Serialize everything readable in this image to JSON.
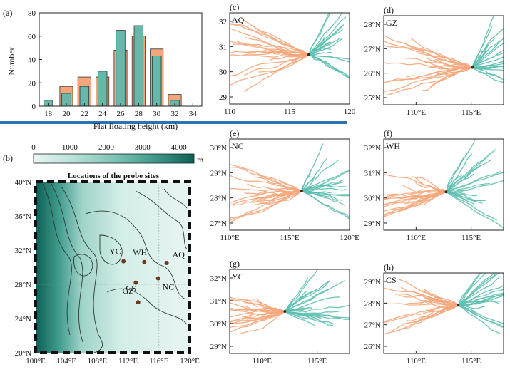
{
  "colors": {
    "orange": "#f5a67a",
    "teal": "#5dbfb0",
    "teal_bar": "#66b8aa",
    "orange_bar": "#f4a57a",
    "rule": "#2a73b6",
    "terrain_light": "#e8f5f2",
    "terrain_dark": "#0e5f55",
    "site_dot": "#6b3a1f"
  },
  "panel_a": {
    "label": "(a)",
    "ylabel": "Number",
    "xlabel": "Flat floating height (km)",
    "yticks": [
      "0",
      "20",
      "40",
      "60",
      "80"
    ],
    "xticks": [
      "18",
      "20",
      "22",
      "24",
      "26",
      "28",
      "30",
      "32",
      "34"
    ],
    "chart_data": {
      "type": "bar",
      "categories": [
        "18",
        "20",
        "22",
        "24",
        "26",
        "28",
        "30",
        "32",
        "34"
      ],
      "ylim": [
        0,
        80
      ],
      "series": [
        {
          "values": [
            0,
            17,
            25,
            25,
            48,
            60,
            49,
            10,
            0
          ]
        },
        {
          "values": [
            5,
            11,
            17,
            30,
            65,
            69,
            43,
            5,
            0
          ]
        }
      ]
    }
  },
  "panel_b": {
    "label": "(b)",
    "colorbar_ticks": [
      "0",
      "1000",
      "2000",
      "3000",
      "4000"
    ],
    "colorbar_unit": "m",
    "title": "Locations of the probe sites",
    "yticks": [
      "20°N",
      "24°N",
      "28°N",
      "32°N",
      "36°N",
      "40°N"
    ],
    "xticks": [
      "100°E",
      "104°E",
      "108°E",
      "112°E",
      "116°E",
      "120°E"
    ],
    "sites": [
      {
        "name": "YC",
        "lon": 111.4,
        "lat": 30.7
      },
      {
        "name": "WH",
        "lon": 114.1,
        "lat": 30.6
      },
      {
        "name": "AQ",
        "lon": 117.0,
        "lat": 30.5
      },
      {
        "name": "CS",
        "lon": 113.0,
        "lat": 28.2
      },
      {
        "name": "NC",
        "lon": 115.9,
        "lat": 28.7
      },
      {
        "name": "GZ",
        "lon": 113.3,
        "lat": 25.9
      }
    ]
  },
  "panels": [
    {
      "label": "(c)",
      "site": "AQ",
      "yticks": [
        "32",
        "31",
        "30",
        "29"
      ],
      "xticks": [
        "110",
        "115",
        "120"
      ]
    },
    {
      "label": "(d)",
      "site": "GZ",
      "yticks": [
        "28°N",
        "27°N",
        "26°N",
        "25°N"
      ],
      "xticks": [
        "110°E",
        "115°E"
      ]
    },
    {
      "label": "(e)",
      "site": "NC",
      "yticks": [
        "30°N",
        "29°N",
        "28°N",
        "27°N"
      ],
      "xticks": [
        "110°E",
        "115°E",
        "120°E"
      ]
    },
    {
      "label": "(f)",
      "site": "WH",
      "yticks": [
        "32°N",
        "31°N",
        "30°N",
        "29°N"
      ],
      "xticks": [
        "110°E",
        "115°E"
      ]
    },
    {
      "label": "(g)",
      "site": "YC",
      "yticks": [
        "32°N",
        "31°N",
        "30°N",
        "29°N"
      ],
      "xticks": [
        "110°E",
        "115°E"
      ]
    },
    {
      "label": "(h)",
      "site": "CS",
      "yticks": [
        "29°N",
        "28°N",
        "27°N",
        "26°N"
      ],
      "xticks": [
        "110°E",
        "115°E"
      ]
    }
  ]
}
